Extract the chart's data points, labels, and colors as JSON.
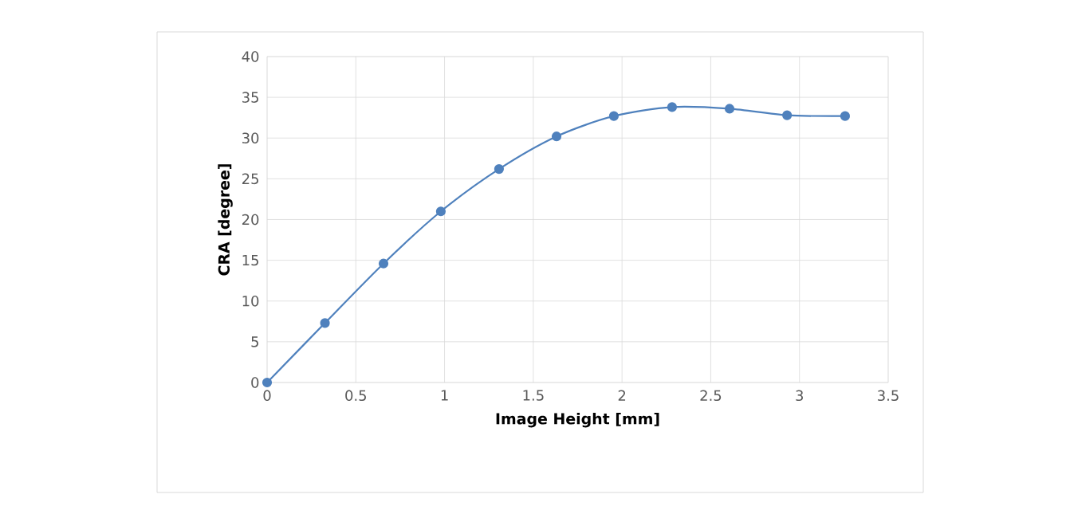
{
  "chart_data": {
    "type": "line",
    "xlabel": "Image Height [mm]",
    "ylabel": "CRA  [degree]",
    "x": [
      0,
      0.326,
      0.656,
      0.979,
      1.307,
      1.631,
      1.954,
      2.282,
      2.606,
      2.93,
      3.257
    ],
    "series": [
      {
        "color": "#4f81bd",
        "values": [
          0,
          7.3,
          14.6,
          21.0,
          26.2,
          30.2,
          32.7,
          33.8,
          33.6,
          32.8,
          32.7
        ]
      }
    ],
    "xlim": [
      0,
      3.5
    ],
    "ylim": [
      0,
      40
    ],
    "xticks": [
      0,
      0.5,
      1,
      1.5,
      2,
      2.5,
      3,
      3.5
    ],
    "yticks": [
      0,
      5,
      10,
      15,
      20,
      25,
      30,
      35,
      40
    ],
    "grid": true,
    "marker": "circle",
    "line_style": "solid"
  }
}
